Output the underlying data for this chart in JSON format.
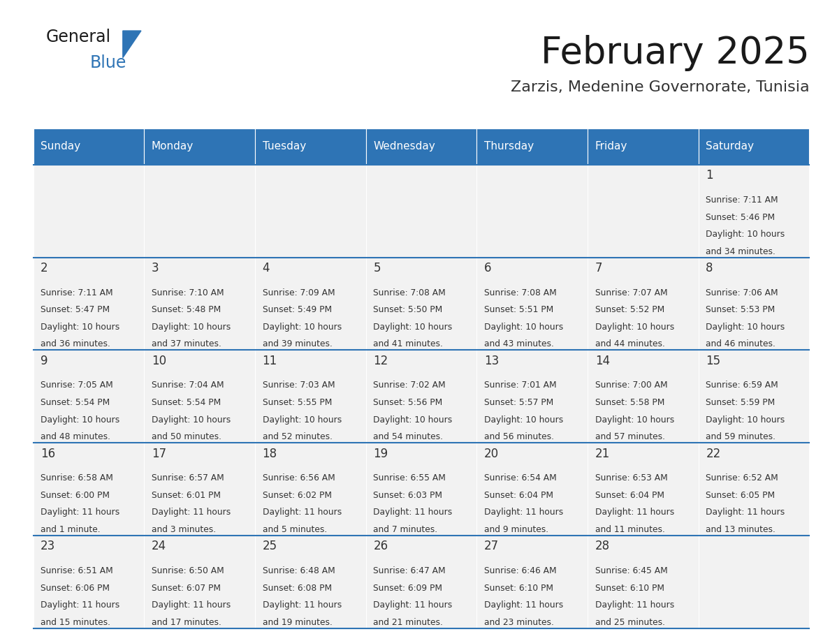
{
  "title": "February 2025",
  "subtitle": "Zarzis, Medenine Governorate, Tunisia",
  "header_bg": "#2E74B5",
  "header_text": "#FFFFFF",
  "cell_bg_light": "#F2F2F2",
  "divider_color": "#2E74B5",
  "text_color": "#333333",
  "days_of_week": [
    "Sunday",
    "Monday",
    "Tuesday",
    "Wednesday",
    "Thursday",
    "Friday",
    "Saturday"
  ],
  "weeks": [
    [
      {
        "day": null,
        "sunrise": null,
        "sunset": null,
        "daylight": null
      },
      {
        "day": null,
        "sunrise": null,
        "sunset": null,
        "daylight": null
      },
      {
        "day": null,
        "sunrise": null,
        "sunset": null,
        "daylight": null
      },
      {
        "day": null,
        "sunrise": null,
        "sunset": null,
        "daylight": null
      },
      {
        "day": null,
        "sunrise": null,
        "sunset": null,
        "daylight": null
      },
      {
        "day": null,
        "sunrise": null,
        "sunset": null,
        "daylight": null
      },
      {
        "day": 1,
        "sunrise": "7:11 AM",
        "sunset": "5:46 PM",
        "daylight": "10 hours and 34 minutes."
      }
    ],
    [
      {
        "day": 2,
        "sunrise": "7:11 AM",
        "sunset": "5:47 PM",
        "daylight": "10 hours and 36 minutes."
      },
      {
        "day": 3,
        "sunrise": "7:10 AM",
        "sunset": "5:48 PM",
        "daylight": "10 hours and 37 minutes."
      },
      {
        "day": 4,
        "sunrise": "7:09 AM",
        "sunset": "5:49 PM",
        "daylight": "10 hours and 39 minutes."
      },
      {
        "day": 5,
        "sunrise": "7:08 AM",
        "sunset": "5:50 PM",
        "daylight": "10 hours and 41 minutes."
      },
      {
        "day": 6,
        "sunrise": "7:08 AM",
        "sunset": "5:51 PM",
        "daylight": "10 hours and 43 minutes."
      },
      {
        "day": 7,
        "sunrise": "7:07 AM",
        "sunset": "5:52 PM",
        "daylight": "10 hours and 44 minutes."
      },
      {
        "day": 8,
        "sunrise": "7:06 AM",
        "sunset": "5:53 PM",
        "daylight": "10 hours and 46 minutes."
      }
    ],
    [
      {
        "day": 9,
        "sunrise": "7:05 AM",
        "sunset": "5:54 PM",
        "daylight": "10 hours and 48 minutes."
      },
      {
        "day": 10,
        "sunrise": "7:04 AM",
        "sunset": "5:54 PM",
        "daylight": "10 hours and 50 minutes."
      },
      {
        "day": 11,
        "sunrise": "7:03 AM",
        "sunset": "5:55 PM",
        "daylight": "10 hours and 52 minutes."
      },
      {
        "day": 12,
        "sunrise": "7:02 AM",
        "sunset": "5:56 PM",
        "daylight": "10 hours and 54 minutes."
      },
      {
        "day": 13,
        "sunrise": "7:01 AM",
        "sunset": "5:57 PM",
        "daylight": "10 hours and 56 minutes."
      },
      {
        "day": 14,
        "sunrise": "7:00 AM",
        "sunset": "5:58 PM",
        "daylight": "10 hours and 57 minutes."
      },
      {
        "day": 15,
        "sunrise": "6:59 AM",
        "sunset": "5:59 PM",
        "daylight": "10 hours and 59 minutes."
      }
    ],
    [
      {
        "day": 16,
        "sunrise": "6:58 AM",
        "sunset": "6:00 PM",
        "daylight": "11 hours and 1 minute."
      },
      {
        "day": 17,
        "sunrise": "6:57 AM",
        "sunset": "6:01 PM",
        "daylight": "11 hours and 3 minutes."
      },
      {
        "day": 18,
        "sunrise": "6:56 AM",
        "sunset": "6:02 PM",
        "daylight": "11 hours and 5 minutes."
      },
      {
        "day": 19,
        "sunrise": "6:55 AM",
        "sunset": "6:03 PM",
        "daylight": "11 hours and 7 minutes."
      },
      {
        "day": 20,
        "sunrise": "6:54 AM",
        "sunset": "6:04 PM",
        "daylight": "11 hours and 9 minutes."
      },
      {
        "day": 21,
        "sunrise": "6:53 AM",
        "sunset": "6:04 PM",
        "daylight": "11 hours and 11 minutes."
      },
      {
        "day": 22,
        "sunrise": "6:52 AM",
        "sunset": "6:05 PM",
        "daylight": "11 hours and 13 minutes."
      }
    ],
    [
      {
        "day": 23,
        "sunrise": "6:51 AM",
        "sunset": "6:06 PM",
        "daylight": "11 hours and 15 minutes."
      },
      {
        "day": 24,
        "sunrise": "6:50 AM",
        "sunset": "6:07 PM",
        "daylight": "11 hours and 17 minutes."
      },
      {
        "day": 25,
        "sunrise": "6:48 AM",
        "sunset": "6:08 PM",
        "daylight": "11 hours and 19 minutes."
      },
      {
        "day": 26,
        "sunrise": "6:47 AM",
        "sunset": "6:09 PM",
        "daylight": "11 hours and 21 minutes."
      },
      {
        "day": 27,
        "sunrise": "6:46 AM",
        "sunset": "6:10 PM",
        "daylight": "11 hours and 23 minutes."
      },
      {
        "day": 28,
        "sunrise": "6:45 AM",
        "sunset": "6:10 PM",
        "daylight": "11 hours and 25 minutes."
      },
      {
        "day": null,
        "sunrise": null,
        "sunset": null,
        "daylight": null
      }
    ]
  ],
  "logo_text_general": "General",
  "logo_text_blue": "Blue",
  "fig_width": 11.88,
  "fig_height": 9.18
}
